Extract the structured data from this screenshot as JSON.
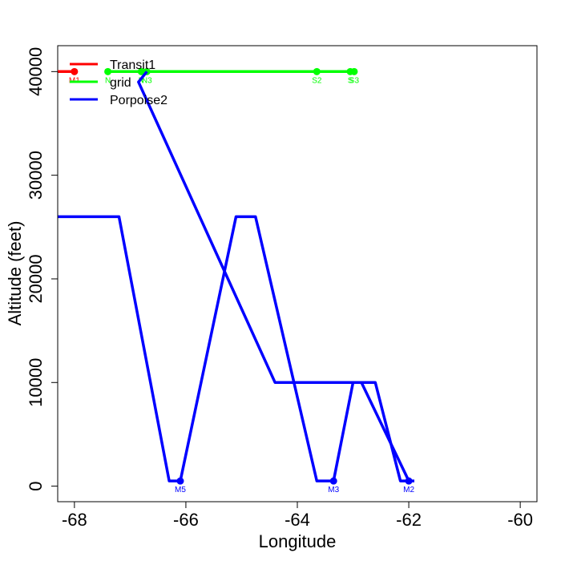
{
  "chart_data": {
    "type": "line",
    "title": "",
    "xlabel": "Longitude",
    "ylabel": "Altitude (feet)",
    "xlim": [
      -68.3,
      -59.7
    ],
    "ylim": [
      -1500,
      42500
    ],
    "xticks": [
      -68,
      -66,
      -64,
      -62,
      -60
    ],
    "yticks": [
      0,
      10000,
      20000,
      30000,
      40000
    ],
    "xtick_labels": [
      "-68",
      "-66",
      "-64",
      "-62",
      "-60"
    ],
    "ytick_labels": [
      "0",
      "10000",
      "20000",
      "30000",
      "40000"
    ],
    "grid": false,
    "legend_position": "top-left",
    "series": [
      {
        "name": "Transit1",
        "color": "#ff0000",
        "line": [
          [
            -68.3,
            40000
          ],
          [
            -68.0,
            40000
          ]
        ],
        "points": [
          {
            "x": -68.0,
            "y": 40000,
            "label": "M1"
          }
        ]
      },
      {
        "name": "grid",
        "color": "#00ff00",
        "line": [
          [
            -67.4,
            40000
          ],
          [
            -63.0,
            40000
          ]
        ],
        "points": [
          {
            "x": -67.4,
            "y": 40000,
            "label": "N"
          },
          {
            "x": -66.8,
            "y": 40000,
            "label": "N"
          },
          {
            "x": -66.7,
            "y": 40000,
            "label": "N3"
          },
          {
            "x": -63.65,
            "y": 40000,
            "label": "S2"
          },
          {
            "x": -63.05,
            "y": 40000,
            "label": "S"
          },
          {
            "x": -62.98,
            "y": 40000,
            "label": "S3"
          }
        ]
      },
      {
        "name": "Porpoise2",
        "color": "#0000ff",
        "lines": [
          [
            [
              -68.3,
              26000
            ],
            [
              -67.2,
              26000
            ],
            [
              -66.3,
              500
            ],
            [
              -66.1,
              500
            ],
            [
              -65.1,
              26000
            ],
            [
              -64.75,
              26000
            ],
            [
              -63.65,
              500
            ],
            [
              -63.35,
              500
            ],
            [
              -63.0,
              10000
            ],
            [
              -62.6,
              10000
            ],
            [
              -62.15,
              500
            ],
            [
              -61.9,
              500
            ]
          ],
          [
            [
              -66.7,
              40000
            ],
            [
              -66.85,
              39000
            ],
            [
              -64.4,
              10000
            ],
            [
              -62.85,
              10000
            ],
            [
              -62.0,
              500
            ]
          ]
        ],
        "points": [
          {
            "x": -66.1,
            "y": 500,
            "label": "M5"
          },
          {
            "x": -63.35,
            "y": 500,
            "label": "M3"
          },
          {
            "x": -62.0,
            "y": 500,
            "label": "M2"
          }
        ]
      }
    ]
  }
}
